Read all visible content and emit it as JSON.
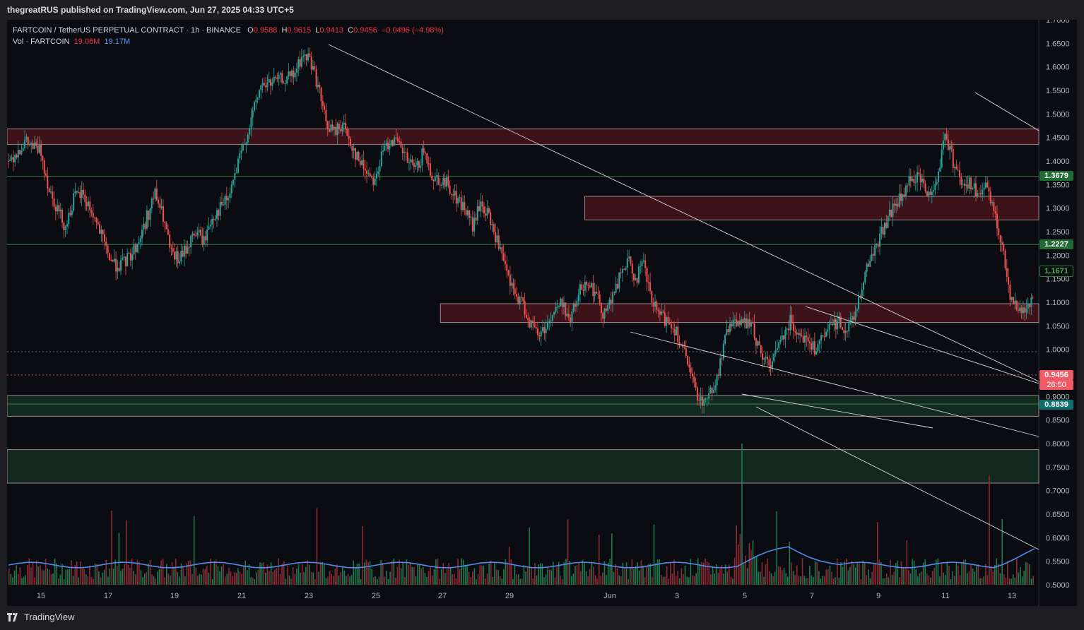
{
  "header": {
    "published": "thegreatRUS published on TradingView.com, Jun 27, 2025 04:33 UTC+5"
  },
  "legend": {
    "symbol": "FARTCOIN / TetherUS PERPETUAL CONTRACT · 1h · BINANCE",
    "o_label": "O",
    "o_value": "0.9588",
    "h_label": "H",
    "h_value": "0.9615",
    "l_label": "L",
    "l_value": "0.9413",
    "c_label": "C",
    "c_value": "0.9456",
    "change": "−0.0496 (−4.98%)",
    "vol_label": "Vol · FARTCOIN",
    "vol_value1": "19.06M",
    "vol_value2": "19.17M"
  },
  "price_tags": {
    "level1": "1.3679",
    "level2": "1.2227",
    "level3": "1.1671",
    "last_price": "0.9456",
    "countdown": "26:50",
    "level4": "0.8839"
  },
  "footer": {
    "brand": "TradingView"
  },
  "colors": {
    "up": "#26a69a",
    "down": "#ef5350",
    "bg": "#0b0c12",
    "zone_red": "#3d1218",
    "zone_green": "#12291f",
    "vol_ma": "#4d8be6"
  },
  "chart_data": {
    "type": "candlestick",
    "ylim": [
      0.5,
      1.7
    ],
    "y_ticks": [
      "1.7000",
      "1.6500",
      "1.6000",
      "1.5500",
      "1.5000",
      "1.4500",
      "1.4000",
      "1.3500",
      "1.3000",
      "1.2500",
      "1.2000",
      "1.1500",
      "1.1000",
      "1.0500",
      "1.0000",
      "0.9500",
      "0.9000",
      "0.8500",
      "0.8000",
      "0.7500",
      "0.7000",
      "0.6500",
      "0.6000",
      "0.5500",
      "0.5000"
    ],
    "x_ticks": [
      "15",
      "17",
      "19",
      "21",
      "23",
      "25",
      "27",
      "29",
      "Jun",
      "3",
      "5",
      "7",
      "9",
      "11",
      "13"
    ],
    "price_path": [
      [
        0,
        1.4
      ],
      [
        2,
        1.44
      ],
      [
        4,
        1.42
      ],
      [
        5,
        1.34
      ],
      [
        6,
        1.3
      ],
      [
        7,
        1.26
      ],
      [
        8,
        1.32
      ],
      [
        9,
        1.33
      ],
      [
        10,
        1.3
      ],
      [
        11,
        1.26
      ],
      [
        12,
        1.21
      ],
      [
        13,
        1.18
      ],
      [
        14,
        1.18
      ],
      [
        15,
        1.2
      ],
      [
        16,
        1.23
      ],
      [
        17,
        1.28
      ],
      [
        18,
        1.33
      ],
      [
        19,
        1.28
      ],
      [
        20,
        1.2
      ],
      [
        21,
        1.19
      ],
      [
        22,
        1.22
      ],
      [
        23,
        1.25
      ],
      [
        24,
        1.23
      ],
      [
        25,
        1.28
      ],
      [
        26,
        1.3
      ],
      [
        27,
        1.32
      ],
      [
        28,
        1.38
      ],
      [
        29,
        1.44
      ],
      [
        30,
        1.5
      ],
      [
        31,
        1.56
      ],
      [
        33,
        1.57
      ],
      [
        35,
        1.58
      ],
      [
        36,
        1.62
      ],
      [
        37,
        1.62
      ],
      [
        38,
        1.56
      ],
      [
        39,
        1.48
      ],
      [
        40,
        1.46
      ],
      [
        41,
        1.48
      ],
      [
        42,
        1.44
      ],
      [
        43,
        1.4
      ],
      [
        44,
        1.38
      ],
      [
        45,
        1.36
      ],
      [
        46,
        1.42
      ],
      [
        47,
        1.45
      ],
      [
        48,
        1.43
      ],
      [
        49,
        1.4
      ],
      [
        50,
        1.38
      ],
      [
        51,
        1.42
      ],
      [
        52,
        1.37
      ],
      [
        53,
        1.36
      ],
      [
        54,
        1.35
      ],
      [
        55,
        1.32
      ],
      [
        56,
        1.3
      ],
      [
        57,
        1.26
      ],
      [
        58,
        1.31
      ],
      [
        59,
        1.28
      ],
      [
        60,
        1.23
      ],
      [
        61,
        1.17
      ],
      [
        62,
        1.12
      ],
      [
        63,
        1.1
      ],
      [
        64,
        1.06
      ],
      [
        65,
        1.03
      ],
      [
        66,
        1.05
      ],
      [
        67,
        1.08
      ],
      [
        68,
        1.1
      ],
      [
        69,
        1.06
      ],
      [
        70,
        1.12
      ],
      [
        71,
        1.15
      ],
      [
        72,
        1.12
      ],
      [
        73,
        1.08
      ],
      [
        74,
        1.1
      ],
      [
        75,
        1.15
      ],
      [
        76,
        1.19
      ],
      [
        77,
        1.15
      ],
      [
        78,
        1.18
      ],
      [
        79,
        1.1
      ],
      [
        80,
        1.07
      ],
      [
        81,
        1.06
      ],
      [
        82,
        1.04
      ],
      [
        83,
        0.99
      ],
      [
        84,
        0.93
      ],
      [
        85,
        0.89
      ],
      [
        86,
        0.9
      ],
      [
        87,
        0.94
      ],
      [
        88,
        1.02
      ],
      [
        89,
        1.07
      ],
      [
        90,
        1.05
      ],
      [
        91,
        1.06
      ],
      [
        92,
        1.01
      ],
      [
        93,
        0.97
      ],
      [
        94,
        0.98
      ],
      [
        95,
        1.03
      ],
      [
        96,
        1.06
      ],
      [
        97,
        1.04
      ],
      [
        98,
        1.02
      ],
      [
        99,
        1.0
      ],
      [
        100,
        1.02
      ],
      [
        101,
        1.05
      ],
      [
        102,
        1.06
      ],
      [
        103,
        1.04
      ],
      [
        104,
        1.08
      ],
      [
        105,
        1.15
      ],
      [
        106,
        1.2
      ],
      [
        107,
        1.24
      ],
      [
        108,
        1.28
      ],
      [
        109,
        1.31
      ],
      [
        110,
        1.33
      ],
      [
        111,
        1.37
      ],
      [
        112,
        1.36
      ],
      [
        113,
        1.33
      ],
      [
        114,
        1.36
      ],
      [
        115,
        1.46
      ],
      [
        116,
        1.4
      ],
      [
        117,
        1.36
      ],
      [
        118,
        1.35
      ],
      [
        119,
        1.33
      ],
      [
        120,
        1.34
      ],
      [
        121,
        1.3
      ],
      [
        122,
        1.22
      ],
      [
        123,
        1.12
      ],
      [
        124,
        1.08
      ],
      [
        125,
        1.09
      ],
      [
        126,
        1.1
      ]
    ],
    "zones": [
      {
        "from": 1.435,
        "to": 1.468,
        "start": 0,
        "color": "red"
      },
      {
        "from": 1.275,
        "to": 1.325,
        "start": 0.56,
        "color": "red"
      },
      {
        "from": 1.057,
        "to": 1.097,
        "start": 0.42,
        "color": "red"
      },
      {
        "from": 0.858,
        "to": 0.902,
        "start": 0,
        "color": "green"
      },
      {
        "from": 0.716,
        "to": 0.787,
        "start": 0,
        "color": "green"
      }
    ],
    "levels": [
      1.3679,
      1.2227,
      0.995,
      0.9456,
      0.8839
    ]
  }
}
